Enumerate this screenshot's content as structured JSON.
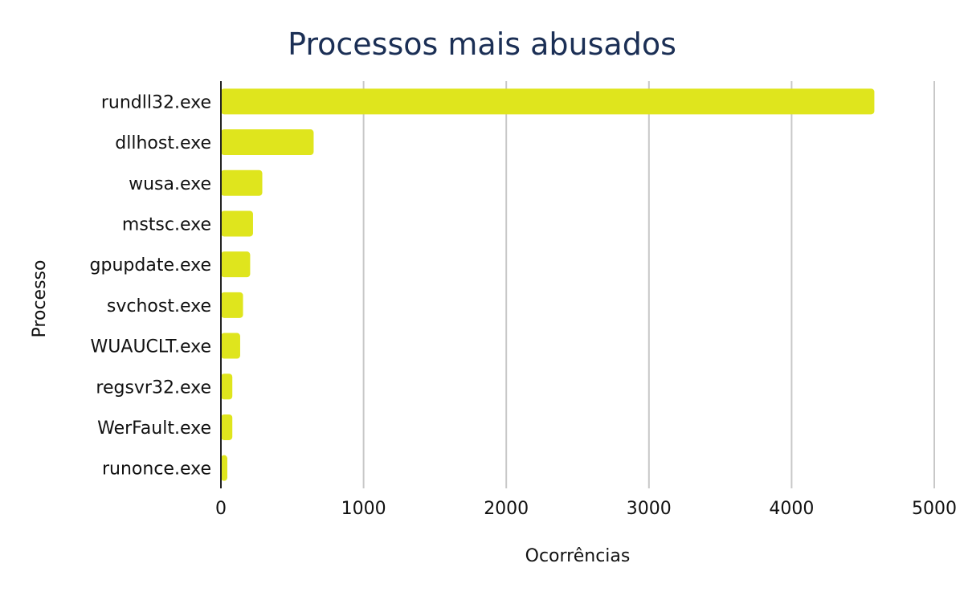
{
  "chart_data": {
    "type": "bar",
    "orientation": "horizontal",
    "title": "Processos mais abusados",
    "xlabel": "Ocorrências",
    "ylabel": "Processo",
    "categories": [
      "rundll32.exe",
      "dllhost.exe",
      "wusa.exe",
      "mstsc.exe",
      "gpupdate.exe",
      "svchost.exe",
      "WUAUCLT.exe",
      "regsvr32.exe",
      "WerFault.exe",
      "runonce.exe"
    ],
    "values": [
      4580,
      650,
      290,
      225,
      205,
      155,
      135,
      80,
      80,
      45
    ],
    "xlim": [
      0,
      5000
    ],
    "xticks": [
      0,
      1000,
      2000,
      3000,
      4000,
      5000
    ],
    "xtick_labels": [
      "0",
      "1000",
      "2000",
      "3000",
      "4000",
      "5000"
    ],
    "grid": "vertical",
    "bar_color": "#dfe51d",
    "title_color": "#1b2f55"
  }
}
